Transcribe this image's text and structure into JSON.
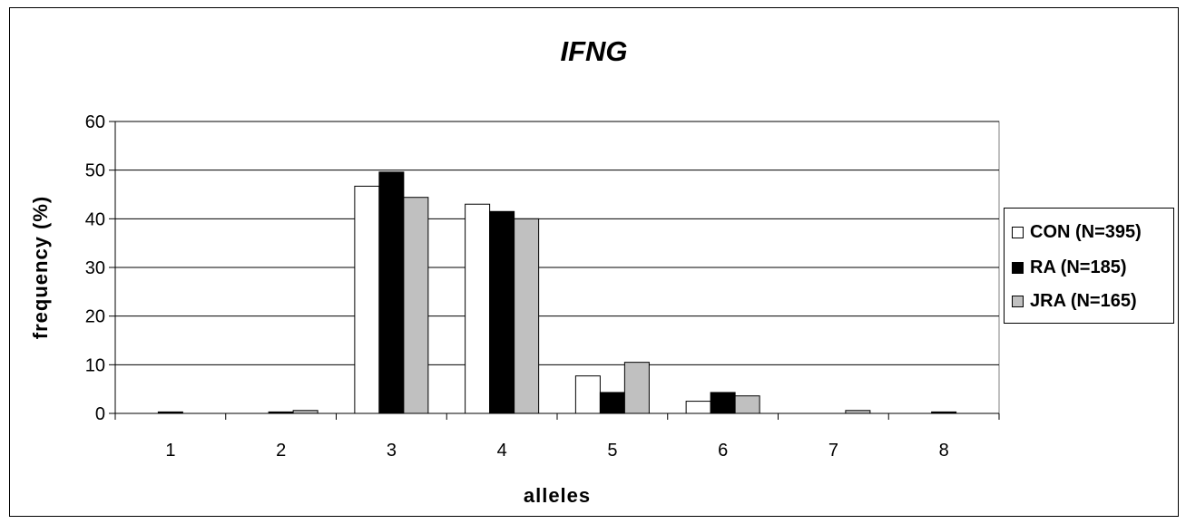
{
  "chart_data": {
    "type": "bar",
    "title": "IFNG",
    "xlabel": "alleles",
    "ylabel": "frequency (%)",
    "categories": [
      "1",
      "2",
      "3",
      "4",
      "5",
      "6",
      "7",
      "8"
    ],
    "ylim": [
      0,
      60
    ],
    "yticks": [
      "0",
      "10",
      "20",
      "30",
      "40",
      "50",
      "60"
    ],
    "grid": "horizontal",
    "legend_position": "right",
    "series": [
      {
        "name": "CON (N=395)",
        "color": "#ffffff",
        "values": [
          0,
          0,
          46.7,
          43.0,
          7.7,
          2.5,
          0,
          0
        ]
      },
      {
        "name": "RA (N=185)",
        "color": "#000000",
        "values": [
          0.3,
          0.3,
          49.6,
          41.5,
          4.3,
          4.3,
          0,
          0.3
        ]
      },
      {
        "name": "JRA (N=165)",
        "color": "#c0c0c0",
        "values": [
          0,
          0.6,
          44.4,
          40.0,
          10.5,
          3.6,
          0.6,
          0
        ]
      }
    ]
  }
}
